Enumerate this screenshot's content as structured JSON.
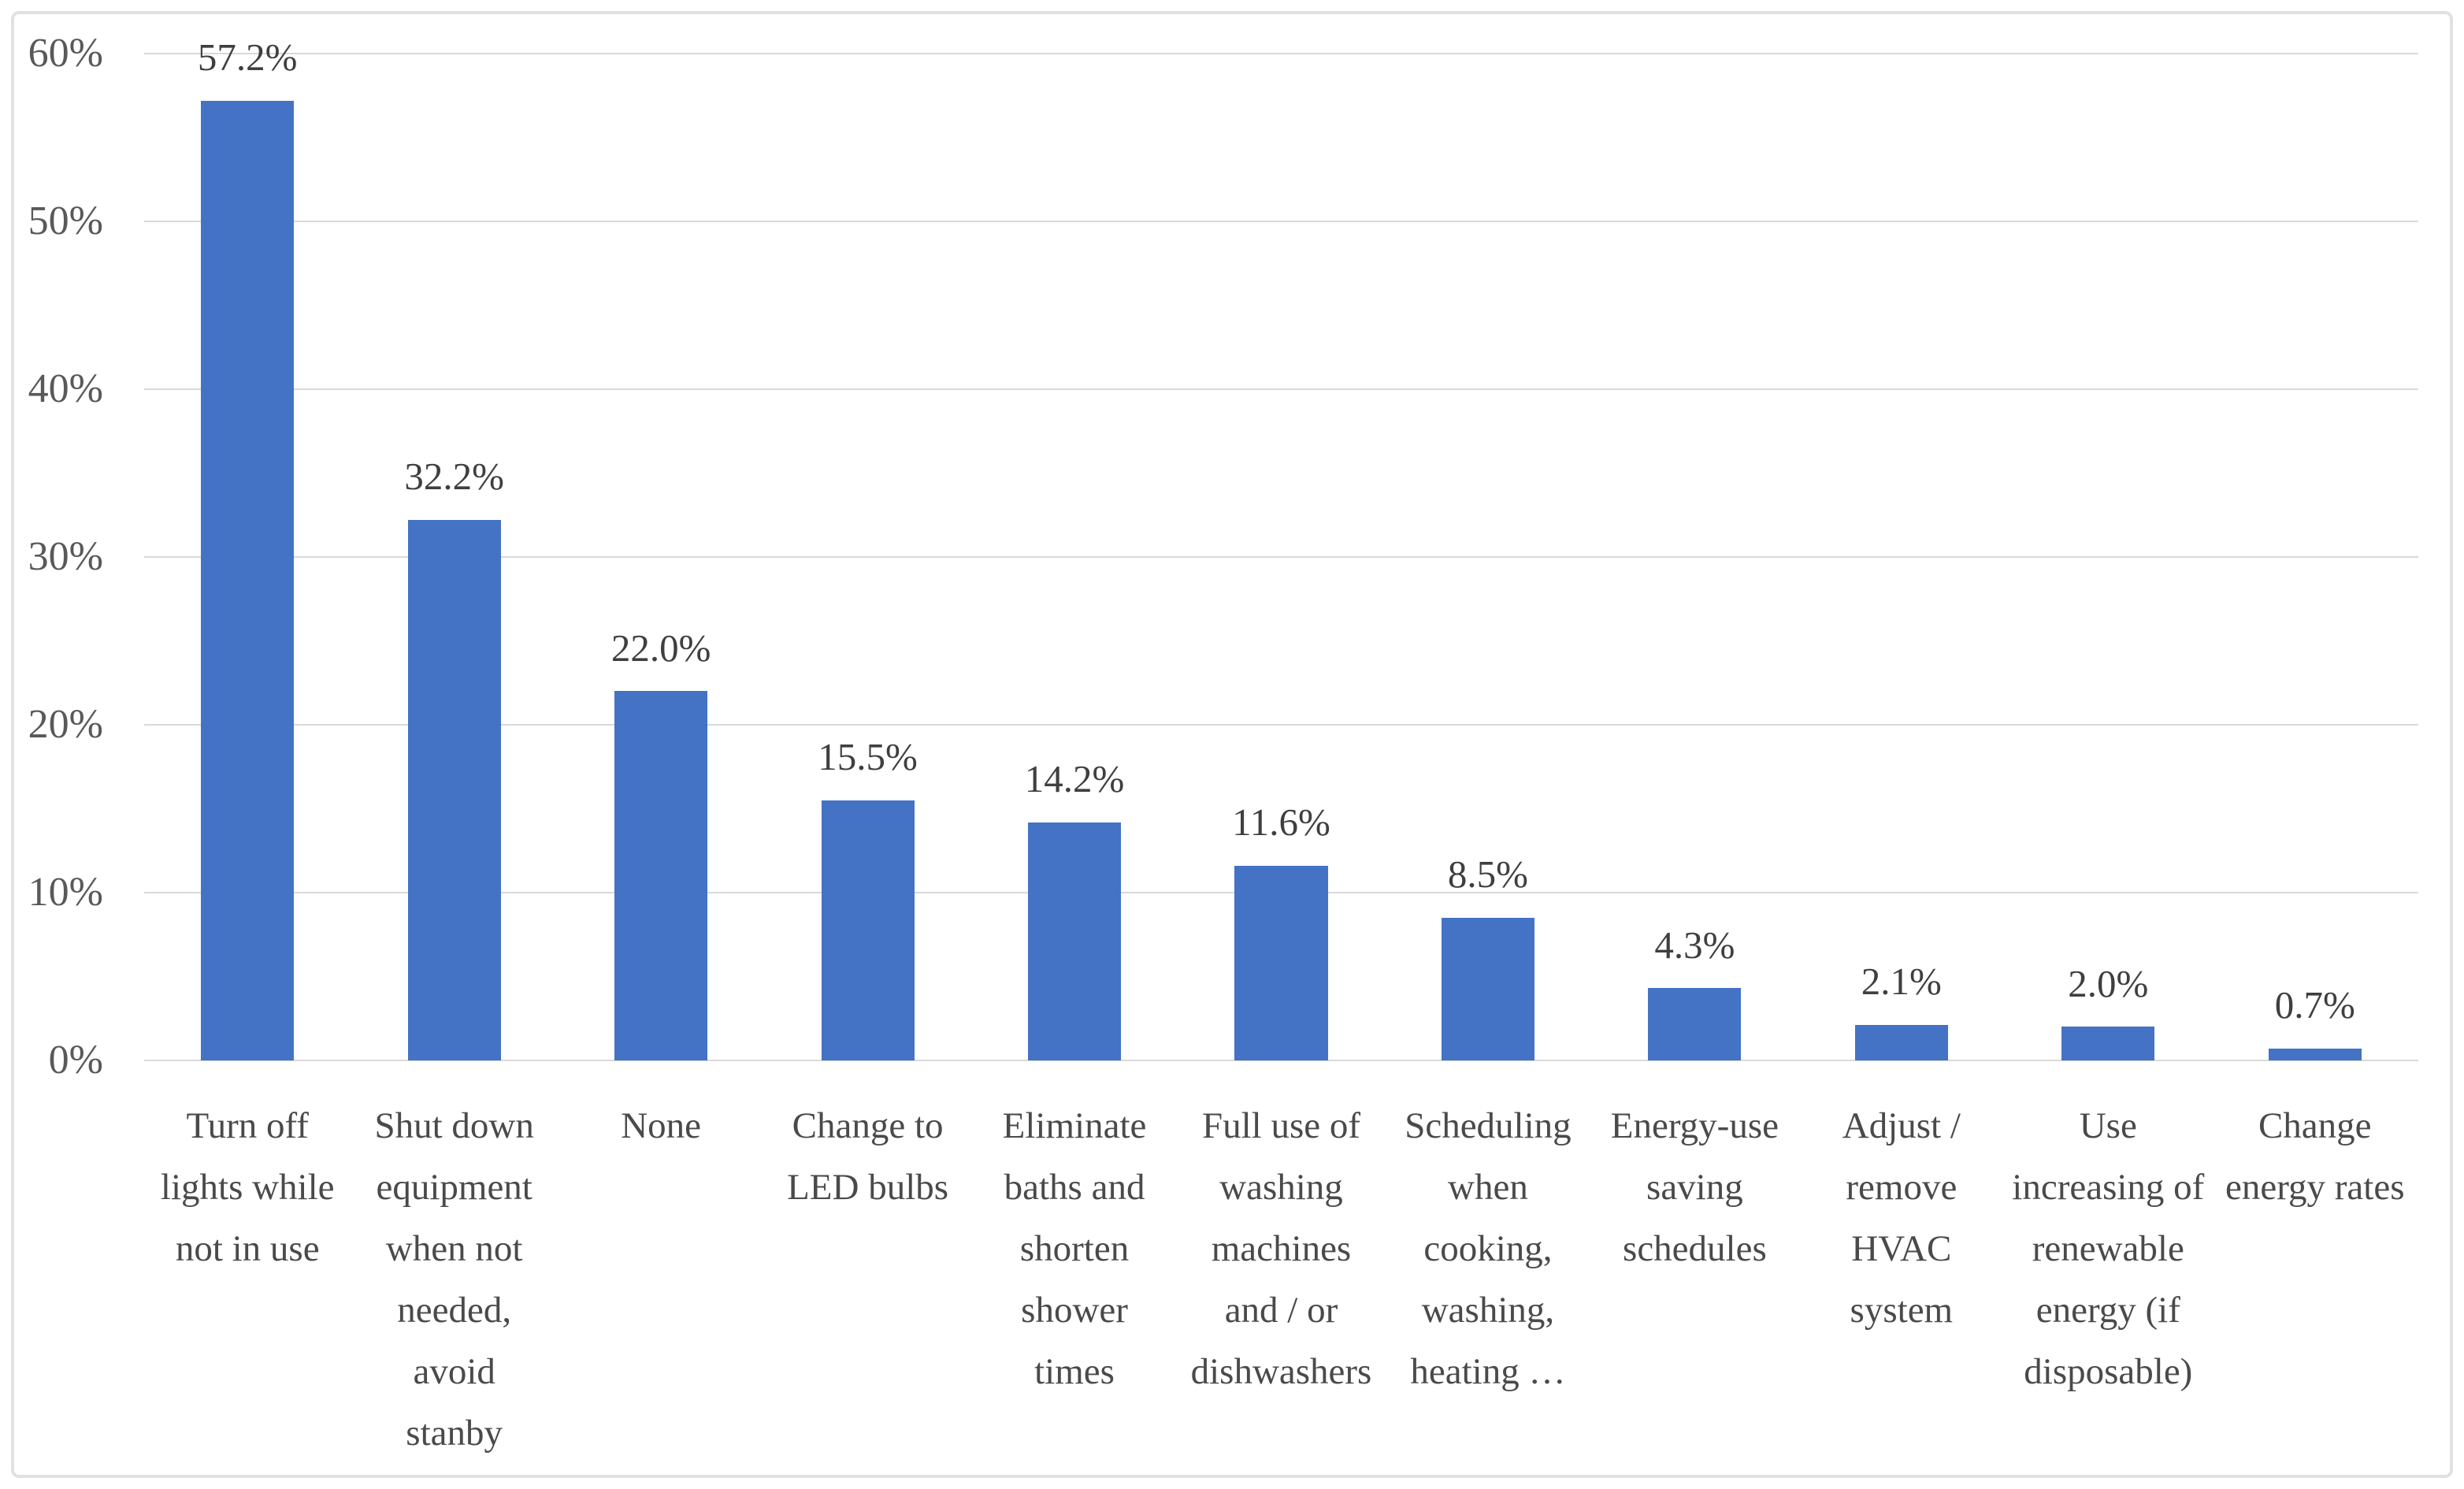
{
  "chart_data": {
    "type": "bar",
    "title": "",
    "xlabel": "",
    "ylabel": "",
    "grid": true,
    "legend": "none",
    "ylim": [
      0,
      60
    ],
    "y_ticks": [
      "0%",
      "10%",
      "20%",
      "30%",
      "40%",
      "50%",
      "60%"
    ],
    "y_tick_values": [
      0,
      10,
      20,
      30,
      40,
      50,
      60
    ],
    "categories": [
      "Turn off\nlights while\nnot in use",
      "Shut down\nequipment\nwhen not\nneeded,\navoid\nstanby",
      "None",
      "Change to\nLED bulbs",
      "Eliminate\nbaths and\nshorten\nshower\ntimes",
      "Full use of\nwashing\nmachines\nand / or\ndishwashers",
      "Scheduling\nwhen\ncooking,\nwashing,\nheating …",
      "Energy-use\nsaving\nschedules",
      "Adjust /\nremove\nHVAC\nsystem",
      "Use\nincreasing of\nrenewable\nenergy (if\ndisposable)",
      "Change\nenergy rates"
    ],
    "values": [
      57.2,
      32.2,
      22.0,
      15.5,
      14.2,
      11.6,
      8.5,
      4.3,
      2.1,
      2.0,
      0.7
    ],
    "value_labels": [
      "57.2%",
      "32.2%",
      "22.0%",
      "15.5%",
      "14.2%",
      "11.6%",
      "8.5%",
      "4.3%",
      "2.1%",
      "2.0%",
      "0.7%"
    ],
    "colors": {
      "bar": "#4472C4",
      "gridline": "#D9D9D9",
      "tick_label": "#595959",
      "data_label": "#3F3F3F",
      "category_label": "#4A4A4A",
      "frame_border": "#E1E1E1",
      "background": "#FFFFFF"
    }
  }
}
